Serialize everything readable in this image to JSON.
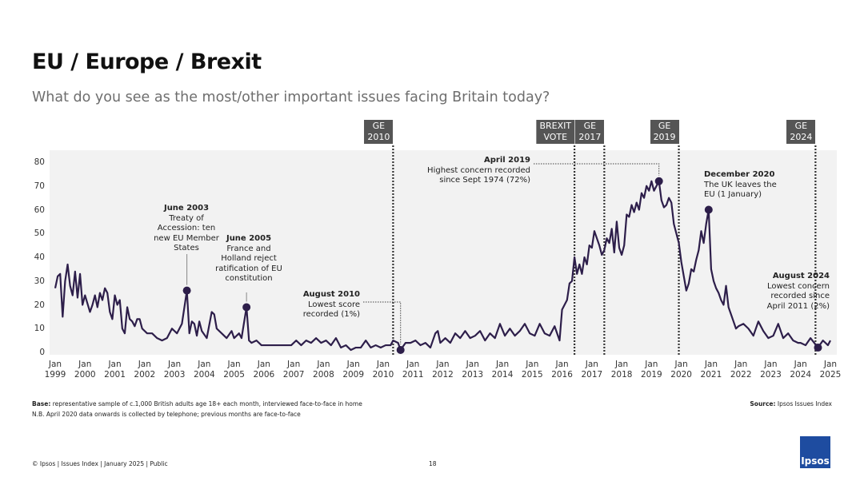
{
  "chart_data": {
    "type": "line",
    "title": "EU / Europe / Brexit",
    "subtitle": "What do you see as the most/other important issues facing Britain today?",
    "color": "#2d1e4a",
    "x": [
      "1999-01",
      "1999-02",
      "1999-03",
      "1999-04",
      "1999-05",
      "1999-06",
      "1999-07",
      "1999-08",
      "1999-09",
      "1999-10",
      "1999-11",
      "1999-12",
      "2000-01",
      "2000-03",
      "2000-04",
      "2000-05",
      "2000-06",
      "2000-07",
      "2000-08",
      "2000-09",
      "2000-10",
      "2000-11",
      "2000-12",
      "2001-01",
      "2001-02",
      "2001-03",
      "2001-04",
      "2001-05",
      "2001-06",
      "2001-07",
      "2001-08",
      "2001-09",
      "2001-10",
      "2001-11",
      "2001-12",
      "2002-02",
      "2002-04",
      "2002-06",
      "2002-08",
      "2002-10",
      "2002-12",
      "2003-02",
      "2003-04",
      "2003-06",
      "2003-07",
      "2003-08",
      "2003-09",
      "2003-10",
      "2003-11",
      "2003-12",
      "2004-02",
      "2004-04",
      "2004-05",
      "2004-06",
      "2004-08",
      "2004-10",
      "2004-12",
      "2005-01",
      "2005-03",
      "2005-04",
      "2005-06",
      "2005-07",
      "2005-08",
      "2005-10",
      "2005-12",
      "2006-03",
      "2006-06",
      "2006-09",
      "2006-12",
      "2007-02",
      "2007-04",
      "2007-06",
      "2007-08",
      "2007-10",
      "2007-12",
      "2008-02",
      "2008-04",
      "2008-06",
      "2008-08",
      "2008-10",
      "2008-12",
      "2009-02",
      "2009-04",
      "2009-06",
      "2009-08",
      "2009-10",
      "2009-12",
      "2010-02",
      "2010-04",
      "2010-05",
      "2010-07",
      "2010-08",
      "2010-10",
      "2010-12",
      "2011-02",
      "2011-04",
      "2011-06",
      "2011-08",
      "2011-10",
      "2011-11",
      "2011-12",
      "2012-02",
      "2012-04",
      "2012-06",
      "2012-08",
      "2012-10",
      "2012-12",
      "2013-02",
      "2013-04",
      "2013-06",
      "2013-08",
      "2013-10",
      "2013-12",
      "2014-02",
      "2014-04",
      "2014-06",
      "2014-08",
      "2014-10",
      "2014-12",
      "2015-02",
      "2015-04",
      "2015-06",
      "2015-08",
      "2015-10",
      "2015-12",
      "2016-01",
      "2016-03",
      "2016-04",
      "2016-05",
      "2016-06",
      "2016-07",
      "2016-08",
      "2016-09",
      "2016-10",
      "2016-11",
      "2016-12",
      "2017-01",
      "2017-02",
      "2017-03",
      "2017-04",
      "2017-05",
      "2017-06",
      "2017-07",
      "2017-08",
      "2017-09",
      "2017-10",
      "2017-11",
      "2017-12",
      "2018-01",
      "2018-02",
      "2018-03",
      "2018-04",
      "2018-05",
      "2018-06",
      "2018-07",
      "2018-08",
      "2018-09",
      "2018-10",
      "2018-11",
      "2018-12",
      "2019-01",
      "2019-02",
      "2019-03",
      "2019-04",
      "2019-05",
      "2019-06",
      "2019-07",
      "2019-08",
      "2019-09",
      "2019-10",
      "2019-11",
      "2019-12",
      "2020-01",
      "2020-02",
      "2020-03",
      "2020-04",
      "2020-05",
      "2020-06",
      "2020-07",
      "2020-08",
      "2020-09",
      "2020-10",
      "2020-11",
      "2020-12",
      "2021-01",
      "2021-02",
      "2021-03",
      "2021-04",
      "2021-05",
      "2021-06",
      "2021-07",
      "2021-08",
      "2021-09",
      "2021-10",
      "2021-11",
      "2021-12",
      "2022-02",
      "2022-04",
      "2022-06",
      "2022-08",
      "2022-10",
      "2022-12",
      "2023-02",
      "2023-04",
      "2023-06",
      "2023-08",
      "2023-10",
      "2023-12",
      "2024-01",
      "2024-03",
      "2024-05",
      "2024-08",
      "2024-10",
      "2024-12",
      "2025-01"
    ],
    "values": [
      27,
      32,
      33,
      15,
      30,
      37,
      28,
      24,
      34,
      23,
      33,
      20,
      24,
      17,
      20,
      24,
      19,
      25,
      22,
      27,
      25,
      17,
      14,
      24,
      20,
      22,
      10,
      8,
      19,
      14,
      13,
      11,
      14,
      14,
      10,
      8,
      8,
      6,
      5,
      6,
      10,
      8,
      12,
      26,
      8,
      13,
      12,
      7,
      13,
      9,
      6,
      17,
      16,
      10,
      8,
      6,
      9,
      6,
      8,
      6,
      19,
      5,
      4,
      5,
      3,
      3,
      3,
      3,
      3,
      5,
      3,
      5,
      4,
      6,
      4,
      5,
      3,
      6,
      2,
      3,
      1,
      2,
      2,
      5,
      2,
      3,
      2,
      3,
      3,
      5,
      4,
      1,
      4,
      4,
      5,
      3,
      4,
      2,
      8,
      9,
      4,
      6,
      4,
      8,
      6,
      9,
      6,
      7,
      9,
      5,
      8,
      6,
      12,
      7,
      10,
      7,
      9,
      12,
      8,
      7,
      12,
      8,
      7,
      11,
      5,
      18,
      22,
      29,
      30,
      40,
      33,
      37,
      33,
      40,
      37,
      45,
      44,
      51,
      48,
      45,
      41,
      43,
      48,
      46,
      52,
      42,
      55,
      44,
      41,
      45,
      58,
      57,
      62,
      59,
      63,
      60,
      67,
      65,
      70,
      68,
      72,
      68,
      70,
      72,
      64,
      61,
      62,
      65,
      63,
      54,
      50,
      46,
      38,
      32,
      26,
      29,
      35,
      34,
      39,
      43,
      51,
      46,
      54,
      60,
      35,
      30,
      27,
      25,
      22,
      20,
      28,
      19,
      16,
      13,
      10,
      11,
      12,
      10,
      7,
      13,
      9,
      6,
      7,
      12,
      6,
      8,
      5,
      4,
      4,
      3,
      6,
      2,
      5,
      3,
      5
    ],
    "xlim": [
      "1999-01",
      "2025-01"
    ],
    "xticks": [
      {
        "value": "1999-01",
        "label": "Jan 1999"
      },
      {
        "value": "2000-01",
        "label": "Jan 2000"
      },
      {
        "value": "2001-01",
        "label": "Jan 2001"
      },
      {
        "value": "2002-01",
        "label": "Jan 2002"
      },
      {
        "value": "2003-01",
        "label": "Jan 2003"
      },
      {
        "value": "2004-01",
        "label": "Jan 2004"
      },
      {
        "value": "2005-01",
        "label": "Jan 2005"
      },
      {
        "value": "2006-01",
        "label": "Jan 2006"
      },
      {
        "value": "2007-01",
        "label": "Jan 2007"
      },
      {
        "value": "2008-01",
        "label": "Jan 2008"
      },
      {
        "value": "2009-01",
        "label": "Jan 2009"
      },
      {
        "value": "2010-01",
        "label": "Jan 2010"
      },
      {
        "value": "2011-01",
        "label": "Jan 2011"
      },
      {
        "value": "2012-01",
        "label": "Jan 2012"
      },
      {
        "value": "2013-01",
        "label": "Jan 2013"
      },
      {
        "value": "2014-01",
        "label": "Jan 2014"
      },
      {
        "value": "2015-01",
        "label": "Jan 2015"
      },
      {
        "value": "2016-01",
        "label": "Jan 2016"
      },
      {
        "value": "2017-01",
        "label": "Jan 2017"
      },
      {
        "value": "2018-01",
        "label": "Jan 2018"
      },
      {
        "value": "2019-01",
        "label": "Jan 2019"
      },
      {
        "value": "2020-01",
        "label": "Jan 2020"
      },
      {
        "value": "2021-01",
        "label": "Jan 2021"
      },
      {
        "value": "2022-01",
        "label": "Jan 2022"
      },
      {
        "value": "2023-01",
        "label": "Jan 2023"
      },
      {
        "value": "2024-01",
        "label": "Jan 2024"
      },
      {
        "value": "2025-01",
        "label": "Jan 2025"
      }
    ],
    "ylim": [
      0,
      80
    ],
    "yticks": [
      0,
      10,
      20,
      30,
      40,
      50,
      60,
      70,
      80
    ],
    "grid": false,
    "events": [
      {
        "x": "2010-05",
        "label": "GE 2010"
      },
      {
        "x": "2016-06",
        "label": "BREXIT VOTE"
      },
      {
        "x": "2017-06",
        "label": "GE 2017"
      },
      {
        "x": "2019-12",
        "label": "GE 2019"
      },
      {
        "x": "2024-07",
        "label": "GE 2024"
      }
    ],
    "annotations": [
      {
        "x": "2003-06",
        "value": 26,
        "title": "June 2003",
        "text": "Treaty of Accession: ten new EU Member States"
      },
      {
        "x": "2005-06",
        "value": 19,
        "title": "June 2005",
        "text": "France and Holland reject ratification of EU constitution"
      },
      {
        "x": "2010-08",
        "value": 1,
        "title": "August 2010",
        "text": "Lowest score recorded (1%)"
      },
      {
        "x": "2019-04",
        "value": 72,
        "title": "April 2019",
        "text": "Highest concern recorded since Sept 1974 (72%)"
      },
      {
        "x": "2020-12",
        "value": 60,
        "title": "December 2020",
        "text": "The UK leaves the EU (1 January)"
      },
      {
        "x": "2024-08",
        "value": 2,
        "title": "August 2024",
        "text": "Lowest concern recorded since April 2011 (2%)"
      }
    ]
  },
  "footer": {
    "base_label": "Base:",
    "base_text": "representative sample of c.1,000 British adults age 18+ each month, interviewed face-to-face in home",
    "note": "N.B. April 2020 data onwards is collected by telephone; previous months are face-to-face",
    "source_label": "Source:",
    "source_text": "Ipsos Issues Index",
    "copyright": "© Ipsos | Issues Index | January 2025 | Public",
    "page_number": "18",
    "logo": "Ipsos"
  }
}
